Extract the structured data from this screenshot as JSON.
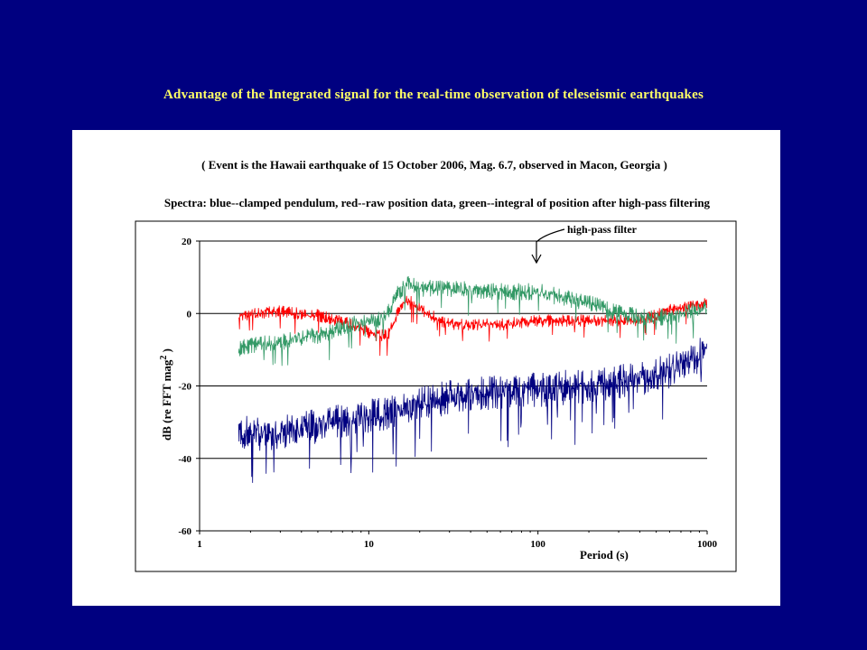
{
  "slide": {
    "title": "Advantage of the Integrated signal for the real-time observation of teleseismic earthquakes"
  },
  "chart_data": {
    "type": "line",
    "subtitle": "( Event is the Hawaii earthquake of 15 October 2006, Mag. 6.7, observed in Macon, Georgia )",
    "title": "Spectra: blue--clamped pendulum, red--raw position data, green--integral of position after high-pass filtering",
    "xlabel": "Period (s)",
    "ylabel": "dB (re FFT mag² )",
    "ylabel_main": "dB (re FFT mag",
    "ylabel_sup": "2",
    "ylabel_end": " )",
    "xscale": "log",
    "xlim": [
      1,
      1000
    ],
    "ylim": [
      -60,
      20
    ],
    "x_ticks": [
      1,
      10,
      100,
      1000
    ],
    "x_tick_labels": [
      "1",
      "10",
      "100",
      "1000"
    ],
    "y_ticks": [
      20,
      0,
      -20,
      -40,
      -60
    ],
    "y_tick_labels": [
      "20",
      "0",
      "-20",
      "-40",
      "-60"
    ],
    "grid": "horizontal",
    "annotation": {
      "text": "high-pass filter",
      "x": 100,
      "y": 12
    },
    "series": [
      {
        "color": "#000080",
        "envelope_x": [
          1.7,
          2,
          3,
          5,
          8,
          12,
          20,
          30,
          50,
          100,
          200,
          400,
          700,
          1000
        ],
        "envelope_y": [
          -33,
          -33,
          -33,
          -31,
          -29,
          -28,
          -25,
          -23,
          -22,
          -21,
          -20,
          -18,
          -15,
          -10
        ],
        "spread": 7
      },
      {
        "color": "#ff0000",
        "envelope_x": [
          1.7,
          2,
          3,
          5,
          8,
          11,
          13,
          15,
          17,
          19,
          22,
          30,
          60,
          100,
          200,
          400,
          600,
          1000
        ],
        "envelope_y": [
          -1,
          0,
          0.5,
          -0.5,
          -3,
          -6,
          -6,
          1,
          4,
          2,
          0,
          -3,
          -3,
          -2,
          -2,
          -2,
          1,
          3
        ],
        "spread": 2.5
      },
      {
        "color": "#339966",
        "envelope_x": [
          1.7,
          2,
          3,
          5,
          8,
          11,
          13,
          15,
          17,
          20,
          30,
          60,
          100,
          150,
          200,
          300,
          400,
          600,
          1000
        ],
        "envelope_y": [
          -10,
          -9,
          -8,
          -6,
          -3,
          -2,
          0,
          6,
          8,
          7,
          7,
          6,
          6,
          4,
          3,
          0,
          -1,
          -1,
          2
        ],
        "spread": 3.5
      }
    ]
  }
}
